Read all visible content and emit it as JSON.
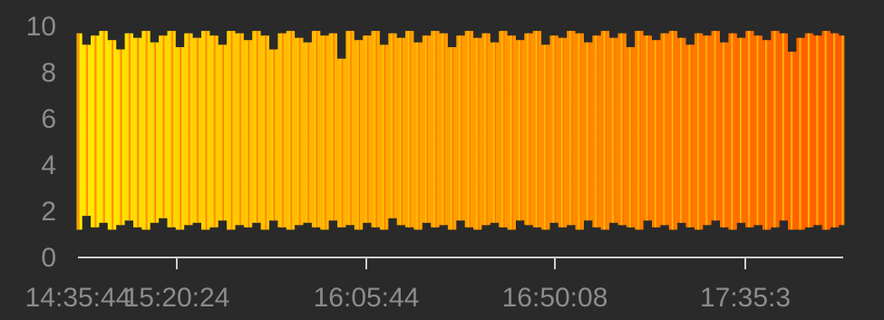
{
  "chart_data": {
    "type": "area",
    "title": "",
    "xlabel": "",
    "ylabel": "",
    "ylim": [
      0,
      10
    ],
    "y_ticks": [
      0,
      2,
      4,
      6,
      8,
      10
    ],
    "x_tick_labels": [
      "14:35:44",
      "15:20:24",
      "16:05:44",
      "16:50:08",
      "17:35:3"
    ],
    "x_range": [
      "14:35:44",
      "17:35:44"
    ],
    "grid": false,
    "legend": "none",
    "gradient_colors": [
      "#ffea00",
      "#ffb300",
      "#ff8a00",
      "#ff5a00"
    ],
    "axis_color": "#cfcfcf",
    "background": "#2a2a2a",
    "series": [
      {
        "x": [
          "14:35:44",
          "14:37:44",
          "14:39:44",
          "14:41:44",
          "14:43:44",
          "14:45:44",
          "14:47:44",
          "14:49:44",
          "14:51:44",
          "14:53:44",
          "14:55:44",
          "14:57:44",
          "14:59:44",
          "15:01:44",
          "15:03:44",
          "15:05:44",
          "15:07:44",
          "15:09:44",
          "15:11:44",
          "15:13:44",
          "15:15:44",
          "15:17:44",
          "15:19:44",
          "15:21:44",
          "15:23:44",
          "15:25:44",
          "15:27:44",
          "15:29:44",
          "15:31:44",
          "15:33:44",
          "15:35:44",
          "15:37:44",
          "15:39:44",
          "15:41:44",
          "15:43:44",
          "15:45:44",
          "15:47:44",
          "15:49:44",
          "15:51:44",
          "15:53:44",
          "15:55:44",
          "15:57:44",
          "15:59:44",
          "16:01:44",
          "16:03:44",
          "16:05:44",
          "16:07:44",
          "16:09:44",
          "16:11:44",
          "16:13:44",
          "16:15:44",
          "16:17:44",
          "16:19:44",
          "16:21:44",
          "16:23:44",
          "16:25:44",
          "16:27:44",
          "16:29:44",
          "16:31:44",
          "16:33:44",
          "16:35:44",
          "16:37:44",
          "16:39:44",
          "16:41:44",
          "16:43:44",
          "16:45:44",
          "16:47:44",
          "16:49:44",
          "16:51:44",
          "16:53:44",
          "16:55:44",
          "16:57:44",
          "16:59:44",
          "17:01:44",
          "17:03:44",
          "17:05:44",
          "17:07:44",
          "17:09:44",
          "17:11:44",
          "17:13:44",
          "17:15:44",
          "17:17:44",
          "17:19:44",
          "17:21:44",
          "17:23:44",
          "17:25:44",
          "17:27:44",
          "17:29:44",
          "17:31:44",
          "17:33:44",
          "17:35:44"
        ],
        "high": [
          9.7,
          9.2,
          9.6,
          9.8,
          9.4,
          9.0,
          9.7,
          9.5,
          9.8,
          9.3,
          9.6,
          9.8,
          9.1,
          9.7,
          9.5,
          9.8,
          9.6,
          9.2,
          9.8,
          9.7,
          9.4,
          9.8,
          9.6,
          9.0,
          9.7,
          9.8,
          9.5,
          9.3,
          9.8,
          9.6,
          9.7,
          8.6,
          9.8,
          9.4,
          9.6,
          9.8,
          9.2,
          9.7,
          9.5,
          9.8,
          9.3,
          9.6,
          9.8,
          9.7,
          9.1,
          9.6,
          9.8,
          9.5,
          9.7,
          9.3,
          9.8,
          9.6,
          9.4,
          9.7,
          9.8,
          9.2,
          9.6,
          9.5,
          9.8,
          9.7,
          9.3,
          9.6,
          9.8,
          9.5,
          9.7,
          9.1,
          9.8,
          9.6,
          9.4,
          9.7,
          9.8,
          9.5,
          9.2,
          9.7,
          9.6,
          9.8,
          9.3,
          9.7,
          9.5,
          9.8,
          9.6,
          9.4,
          9.8,
          9.7,
          8.9,
          9.5,
          9.7,
          9.6,
          9.8,
          9.7,
          9.6
        ],
        "low": [
          1.2,
          1.8,
          1.3,
          1.5,
          1.2,
          1.4,
          1.6,
          1.3,
          1.2,
          1.5,
          1.7,
          1.3,
          1.2,
          1.4,
          1.5,
          1.2,
          1.3,
          1.6,
          1.2,
          1.4,
          1.3,
          1.5,
          1.2,
          1.6,
          1.3,
          1.2,
          1.4,
          1.5,
          1.3,
          1.2,
          1.6,
          1.3,
          1.4,
          1.2,
          1.5,
          1.3,
          1.2,
          1.7,
          1.4,
          1.3,
          1.2,
          1.5,
          1.3,
          1.4,
          1.2,
          1.6,
          1.3,
          1.2,
          1.4,
          1.5,
          1.3,
          1.2,
          1.6,
          1.4,
          1.3,
          1.2,
          1.5,
          1.3,
          1.4,
          1.2,
          1.6,
          1.3,
          1.2,
          1.5,
          1.4,
          1.3,
          1.2,
          1.6,
          1.3,
          1.4,
          1.2,
          1.5,
          1.3,
          1.2,
          1.4,
          1.6,
          1.3,
          1.2,
          1.5,
          1.3,
          1.4,
          1.2,
          1.3,
          1.6,
          1.2,
          1.2,
          1.3,
          1.4,
          1.2,
          1.3,
          1.4
        ]
      }
    ]
  }
}
